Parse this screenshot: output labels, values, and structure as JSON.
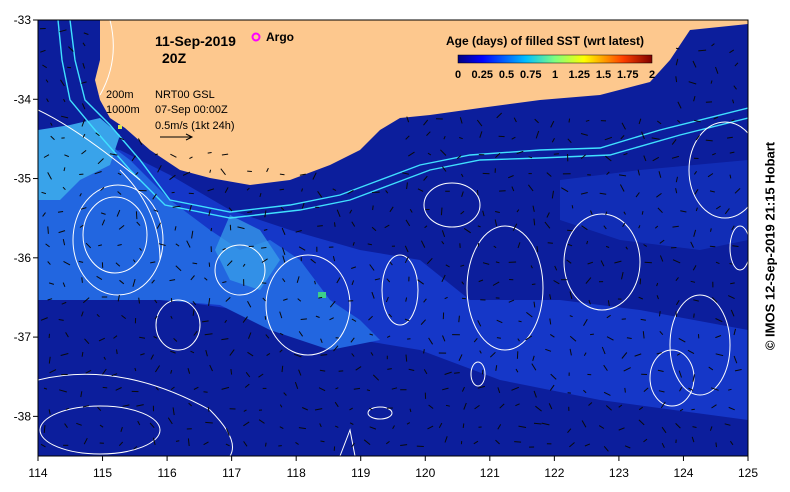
{
  "map": {
    "date": "11-Sep-2019",
    "time": "20Z",
    "legend_argo": "Argo",
    "colorbar": {
      "title": "Age (days) of filled SST (wrt latest)",
      "tick_labels": [
        "0",
        "0.25",
        "0.5",
        "0.75",
        "1",
        "1.25",
        "1.5",
        "1.75",
        "2"
      ],
      "colors": [
        "#00007f",
        "#0000ff",
        "#007fff",
        "#00ffff",
        "#7fff7f",
        "#ffff00",
        "#ff7f00",
        "#ff0000",
        "#7f0000"
      ]
    },
    "contour_legend": [
      "200m",
      "1000m"
    ],
    "current_source": "NRT00 GSL",
    "current_date": "07-Sep 00:00Z",
    "vector_scale": "0.5m/s (1kt 24h)",
    "credit": "© IMOS 12-Sep-2019 21:15 Hobart",
    "lon_ticks": [
      "114",
      "115",
      "116",
      "117",
      "118",
      "119",
      "120",
      "121",
      "122",
      "123",
      "124",
      "125"
    ],
    "lat_ticks": [
      "-33",
      "-34",
      "-35",
      "-36",
      "-37",
      "-38"
    ],
    "lon_range": [
      114,
      125
    ],
    "lat_range": [
      -38.5,
      -33
    ],
    "land_color": "#fdc88e",
    "ocean_colors": [
      "#0c1e9c",
      "#1537c8",
      "#2266e0",
      "#39a3ea"
    ]
  }
}
